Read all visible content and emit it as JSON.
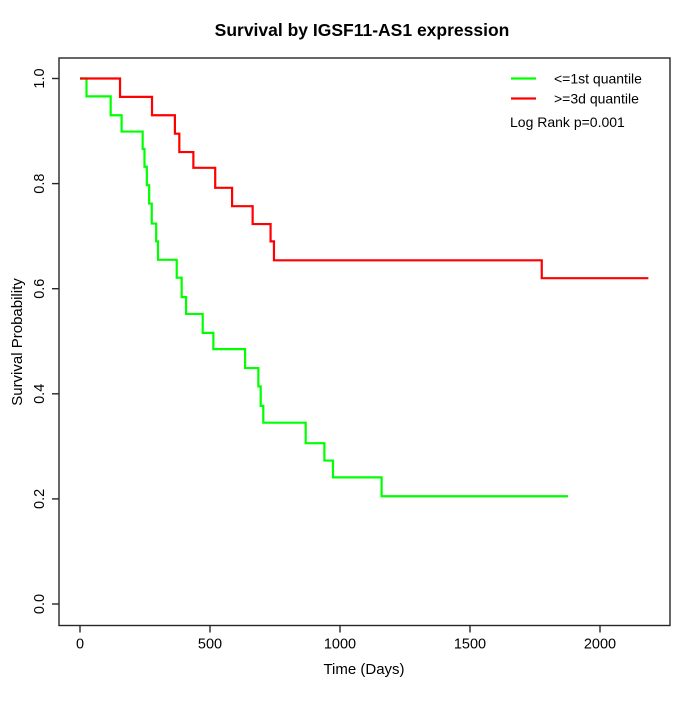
{
  "chart_data": {
    "type": "line",
    "subtype": "kaplan_meier_step",
    "title": "Survival by IGSF11-AS1 expression",
    "xlabel": "Time (Days)",
    "ylabel": "Survival Probability",
    "xlim": [
      -87,
      2269
    ],
    "ylim": [
      -0.04,
      1.04
    ],
    "x_ticks": [
      0,
      500,
      1000,
      1500,
      2000
    ],
    "x_tick_labels": [
      "0",
      "500",
      "1000",
      "1500",
      "2000"
    ],
    "y_ticks": [
      0.0,
      0.2,
      0.4,
      0.6,
      0.8,
      1.0
    ],
    "y_tick_labels": [
      "0.0",
      "0.2",
      "0.4",
      "0.6",
      "0.8",
      "1.0"
    ],
    "grid": false,
    "legend_position": "top-right",
    "annotation": "Log Rank p=0.001",
    "series": [
      {
        "name": "<=1st quantile",
        "color": "#00FF00",
        "points": [
          [
            0,
            1.0
          ],
          [
            25,
            0.966
          ],
          [
            118,
            0.93
          ],
          [
            160,
            0.899
          ],
          [
            241,
            0.866
          ],
          [
            248,
            0.832
          ],
          [
            257,
            0.797
          ],
          [
            266,
            0.762
          ],
          [
            276,
            0.724
          ],
          [
            293,
            0.69
          ],
          [
            300,
            0.655
          ],
          [
            372,
            0.621
          ],
          [
            391,
            0.584
          ],
          [
            408,
            0.552
          ],
          [
            472,
            0.516
          ],
          [
            513,
            0.485
          ],
          [
            635,
            0.449
          ],
          [
            686,
            0.414
          ],
          [
            695,
            0.377
          ],
          [
            705,
            0.345
          ],
          [
            868,
            0.306
          ],
          [
            940,
            0.273
          ],
          [
            973,
            0.241
          ],
          [
            1160,
            0.205
          ],
          [
            1877,
            0.205
          ]
        ]
      },
      {
        "name": ">=3d quantile",
        "color": "#FF0000",
        "points": [
          [
            0,
            1.0
          ],
          [
            154,
            0.965
          ],
          [
            277,
            0.93
          ],
          [
            365,
            0.895
          ],
          [
            382,
            0.86
          ],
          [
            436,
            0.83
          ],
          [
            520,
            0.792
          ],
          [
            585,
            0.757
          ],
          [
            664,
            0.723
          ],
          [
            733,
            0.69
          ],
          [
            746,
            0.654
          ],
          [
            1776,
            0.62
          ],
          [
            2186,
            0.62
          ]
        ]
      }
    ]
  }
}
